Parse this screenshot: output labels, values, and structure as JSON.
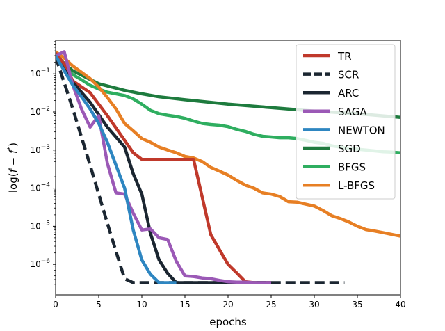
{
  "chart_data": {
    "type": "line",
    "title": "",
    "xlabel": "epochs",
    "ylabel_main": "log(",
    "ylabel_f1": "f",
    "ylabel_minus": " − ",
    "ylabel_f2": "f",
    "ylabel_star": "*",
    "ylabel_close": ")",
    "xlim": [
      0,
      40
    ],
    "ylog_range": [
      -6.8,
      -0.12
    ],
    "yscale": "log",
    "x_ticks": [
      0,
      5,
      10,
      15,
      20,
      25,
      30,
      35,
      40
    ],
    "x_tick_labels": [
      "0",
      "5",
      "10",
      "15",
      "20",
      "25",
      "30",
      "35",
      "40"
    ],
    "y_ticks": [
      {
        "exp": -1,
        "base": "10",
        "sup": "−1"
      },
      {
        "exp": -2,
        "base": "10",
        "sup": "−2"
      },
      {
        "exp": -3,
        "base": "10",
        "sup": "−3"
      },
      {
        "exp": -4,
        "base": "10",
        "sup": "−4"
      },
      {
        "exp": -5,
        "base": "10",
        "sup": "−5"
      },
      {
        "exp": -6,
        "base": "10",
        "sup": "−6"
      }
    ],
    "legend_position": "top-right",
    "series": [
      {
        "name": "SGD",
        "color": "#1e7b3e",
        "dash": false,
        "x": [
          0,
          2,
          5,
          8,
          10,
          12,
          15,
          20,
          25,
          30,
          35,
          40
        ],
        "y": [
          0.3,
          0.12,
          0.055,
          0.037,
          0.03,
          0.025,
          0.021,
          0.016,
          0.013,
          0.0105,
          0.009,
          0.0072
        ]
      },
      {
        "name": "BFGS",
        "color": "#2fae60",
        "dash": false,
        "x": [
          0,
          1,
          2,
          3,
          4,
          5,
          6,
          7,
          8,
          9,
          10,
          11,
          12,
          13,
          14,
          15,
          16,
          17,
          18,
          19,
          20,
          21,
          22,
          23,
          24,
          25,
          26,
          27,
          28,
          29,
          30,
          31,
          32,
          33,
          34,
          35,
          36,
          37,
          38,
          39,
          40
        ],
        "y": [
          0.26,
          0.15,
          0.095,
          0.07,
          0.05,
          0.04,
          0.033,
          0.03,
          0.027,
          0.022,
          0.016,
          0.011,
          0.009,
          0.0082,
          0.0076,
          0.0068,
          0.0058,
          0.005,
          0.0047,
          0.0045,
          0.0041,
          0.0035,
          0.0031,
          0.0026,
          0.0023,
          0.0022,
          0.0021,
          0.0021,
          0.002,
          0.0018,
          0.0016,
          0.0015,
          0.0013,
          0.0012,
          0.0011,
          0.00105,
          0.001,
          0.00095,
          0.0009,
          0.00088,
          0.00085
        ]
      },
      {
        "name": "L-BFGS",
        "color": "#e77f24",
        "dash": false,
        "x": [
          0,
          1,
          2,
          3,
          4,
          5,
          6,
          7,
          8,
          9,
          10,
          11,
          12,
          13,
          14,
          15,
          16,
          17,
          18,
          19,
          20,
          21,
          22,
          23,
          24,
          25,
          26,
          27,
          28,
          29,
          30,
          31,
          32,
          33,
          34,
          35,
          36,
          37,
          38,
          39,
          40
        ],
        "y": [
          0.38,
          0.26,
          0.16,
          0.11,
          0.075,
          0.045,
          0.024,
          0.012,
          0.005,
          0.0032,
          0.002,
          0.0016,
          0.0012,
          0.001,
          0.00085,
          0.00068,
          0.00062,
          0.0005,
          0.00035,
          0.00028,
          0.00022,
          0.00016,
          0.00012,
          0.0001,
          7.5e-05,
          7e-05,
          6e-05,
          4.4e-05,
          4.3e-05,
          3.8e-05,
          3.4e-05,
          2.6e-05,
          1.9e-05,
          1.6e-05,
          1.3e-05,
          1e-05,
          8.2e-06,
          7.5e-06,
          6.8e-06,
          6.1e-06,
          5.5e-06
        ]
      },
      {
        "name": "TR",
        "color": "#c0392b",
        "dash": false,
        "x": [
          0,
          1,
          2,
          4,
          6,
          8,
          9,
          10,
          12,
          14,
          16,
          18,
          20,
          21,
          22,
          23,
          25
        ],
        "y": [
          0.35,
          0.18,
          0.065,
          0.032,
          0.008,
          0.0018,
          0.00085,
          0.00057,
          0.00057,
          0.00057,
          0.00057,
          6e-06,
          1e-06,
          6e-07,
          3.5e-07,
          3.3e-07,
          3.3e-07
        ]
      },
      {
        "name": "SCR",
        "color": "#1b2631",
        "dash": true,
        "x": [
          0,
          2,
          4,
          6,
          7,
          8,
          9,
          10,
          15,
          20,
          25,
          30,
          33.5
        ],
        "y": [
          0.28,
          0.012,
          0.0004,
          1.2e-05,
          2.2e-06,
          4.2e-07,
          3.3e-07,
          3.3e-07,
          3.3e-07,
          3.3e-07,
          3.3e-07,
          3.3e-07,
          3.3e-07
        ]
      },
      {
        "name": "ARC",
        "color": "#1b2631",
        "dash": false,
        "x": [
          0,
          2,
          4,
          6,
          8,
          9,
          10,
          11,
          12,
          13,
          14,
          16,
          20,
          25
        ],
        "y": [
          0.28,
          0.06,
          0.018,
          0.004,
          0.0012,
          0.00024,
          7e-05,
          6.5e-06,
          1.3e-06,
          5.8e-07,
          3.3e-07,
          3.3e-07,
          3.3e-07,
          3.3e-07
        ]
      },
      {
        "name": "SAGA",
        "color": "#9b59b6",
        "dash": false,
        "x": [
          0,
          1,
          2,
          3,
          4,
          5,
          6,
          7,
          8,
          9,
          10,
          11,
          12,
          13,
          14,
          15,
          16,
          17,
          18,
          19,
          20,
          21,
          22,
          23,
          24,
          25
        ],
        "y": [
          0.3,
          0.38,
          0.05,
          0.012,
          0.004,
          0.008,
          0.00045,
          7.5e-05,
          7e-05,
          2.2e-05,
          8e-06,
          8.5e-06,
          5e-06,
          4.5e-06,
          1.2e-06,
          5e-07,
          4.8e-07,
          4.4e-07,
          4.2e-07,
          3.8e-07,
          3.5e-07,
          3.4e-07,
          3.4e-07,
          3.3e-07,
          3.3e-07,
          3.3e-07
        ]
      },
      {
        "name": "NEWTON",
        "color": "#2e86c1",
        "dash": false,
        "x": [
          0,
          1,
          2,
          3,
          4,
          5,
          6,
          7,
          8,
          9,
          10,
          11,
          12,
          13,
          14
        ],
        "y": [
          0.3,
          0.12,
          0.05,
          0.025,
          0.012,
          0.005,
          0.0016,
          0.0004,
          0.0001,
          8e-06,
          1.3e-06,
          5.5e-07,
          3.3e-07,
          3.3e-07,
          3.3e-07
        ]
      }
    ],
    "legend_entries": [
      {
        "name": "TR",
        "color": "#c0392b",
        "dash": false
      },
      {
        "name": "SCR",
        "color": "#1b2631",
        "dash": true
      },
      {
        "name": "ARC",
        "color": "#1b2631",
        "dash": false
      },
      {
        "name": "SAGA",
        "color": "#9b59b6",
        "dash": false
      },
      {
        "name": "NEWTON",
        "color": "#2e86c1",
        "dash": false
      },
      {
        "name": "SGD",
        "color": "#1e7b3e",
        "dash": false
      },
      {
        "name": "BFGS",
        "color": "#2fae60",
        "dash": false
      },
      {
        "name": "L-BFGS",
        "color": "#e77f24",
        "dash": false
      }
    ]
  }
}
